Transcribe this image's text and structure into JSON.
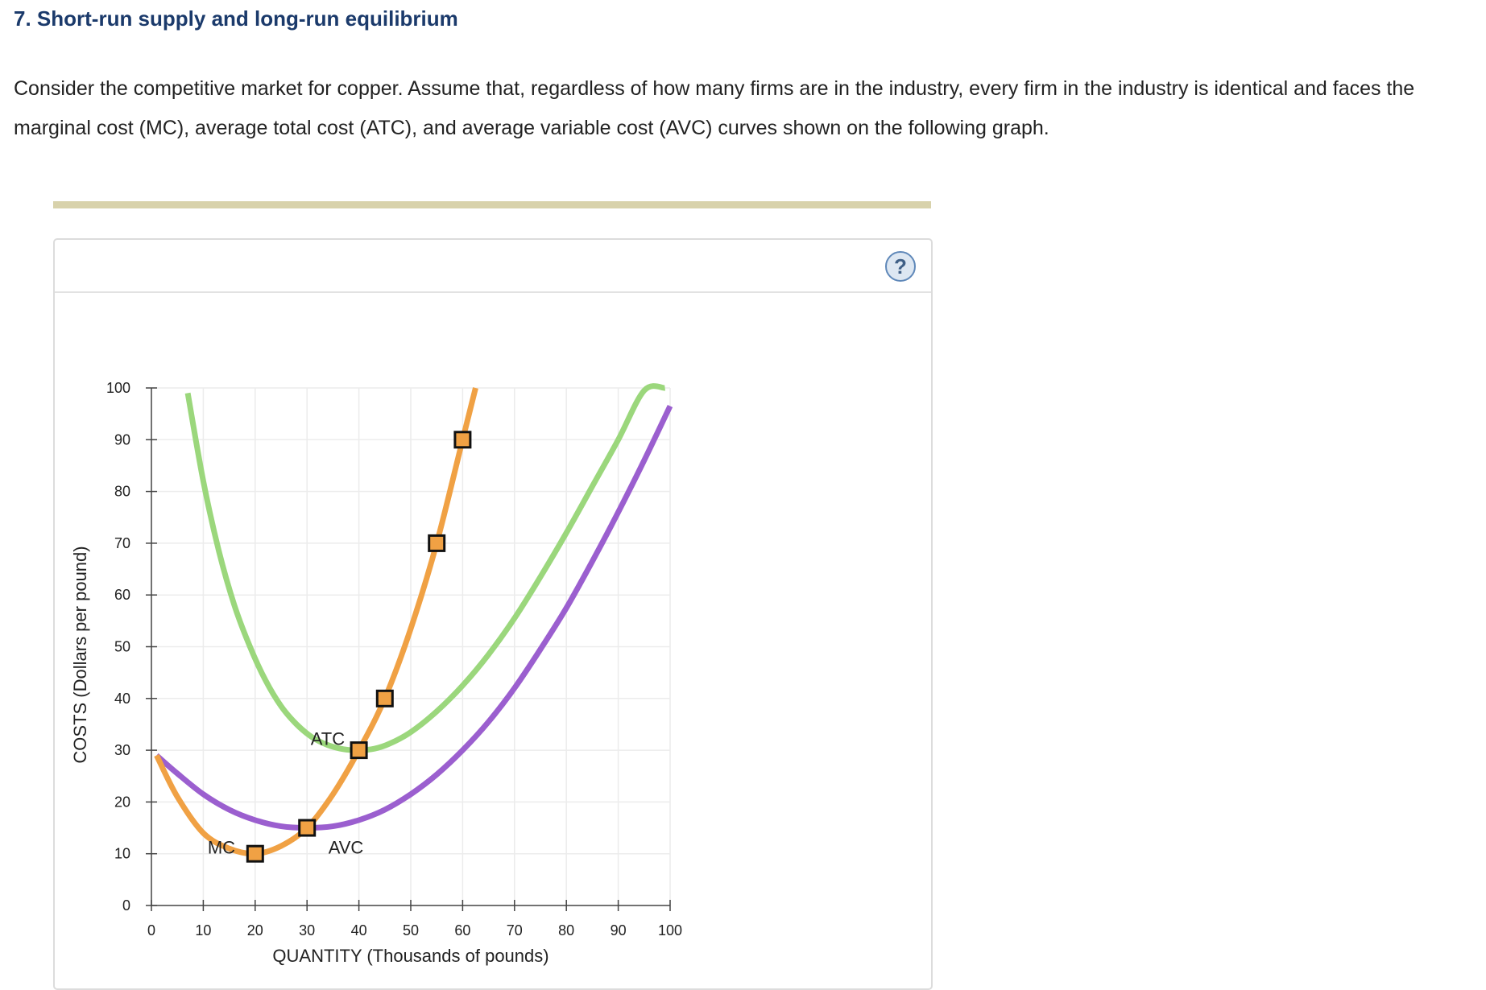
{
  "page": {
    "heading": "7. Short-run supply and long-run equilibrium",
    "intro": "Consider the competitive market for copper. Assume that, regardless of how many firms are in the industry, every firm in the industry is identical and faces the marginal cost (MC), average total cost (ATC), and average variable cost (AVC) curves shown on the following graph.",
    "help_label": "?"
  },
  "chart_data": {
    "type": "line",
    "xlabel": "QUANTITY (Thousands of pounds)",
    "ylabel": "COSTS (Dollars per pound)",
    "xlim": [
      0,
      100
    ],
    "ylim": [
      0,
      100
    ],
    "x_ticks": [
      0,
      10,
      20,
      30,
      40,
      50,
      60,
      70,
      80,
      90,
      100
    ],
    "y_ticks": [
      0,
      10,
      20,
      30,
      40,
      50,
      60,
      70,
      80,
      90,
      100
    ],
    "grid": true,
    "series": [
      {
        "name": "ATC",
        "color": "#9bd77c",
        "x": [
          7,
          10,
          13,
          16,
          19,
          22,
          25,
          28,
          31,
          34,
          37,
          40,
          43,
          46,
          50,
          55,
          60,
          65,
          70,
          75,
          80,
          85,
          90,
          95,
          99
        ],
        "y": [
          99,
          82,
          68.5,
          58,
          50,
          43.5,
          38.5,
          35,
          32.5,
          31,
          30.2,
          30,
          30.3,
          31.3,
          33.5,
          37.5,
          42.5,
          48.5,
          55.5,
          63.5,
          72,
          81,
          90,
          99.5,
          100
        ]
      },
      {
        "name": "AVC",
        "color": "#9b5fcf",
        "x": [
          1,
          5,
          10,
          15,
          20,
          25,
          30,
          35,
          40,
          45,
          50,
          55,
          60,
          65,
          70,
          75,
          80,
          85,
          90,
          95,
          100
        ],
        "y": [
          29,
          25.5,
          21.5,
          18.5,
          16.5,
          15.3,
          15,
          15.3,
          16.5,
          18.5,
          21.5,
          25.3,
          30,
          35.5,
          42,
          49.5,
          57.5,
          66.5,
          76,
          86,
          96.5
        ]
      },
      {
        "name": "MC",
        "color": "#f0a144",
        "x": [
          1,
          5,
          10,
          15,
          20,
          25,
          30,
          35,
          40,
          45,
          50,
          55,
          60,
          62.5
        ],
        "y": [
          29,
          21,
          14,
          11,
          10,
          11.5,
          15,
          21.5,
          30,
          40,
          53.5,
          70,
          90,
          100
        ]
      }
    ],
    "markers": [
      {
        "x": 20,
        "y": 10
      },
      {
        "x": 30,
        "y": 15
      },
      {
        "x": 40,
        "y": 30
      },
      {
        "x": 45,
        "y": 40
      },
      {
        "x": 55,
        "y": 70
      },
      {
        "x": 60,
        "y": 90
      }
    ],
    "marker_color": "#f0a144",
    "curve_labels": [
      {
        "text": "ATC",
        "x": 34,
        "y": 31
      },
      {
        "text": "AVC",
        "x": 37.5,
        "y": 10
      },
      {
        "text": "MC",
        "x": 13.5,
        "y": 10
      }
    ]
  }
}
